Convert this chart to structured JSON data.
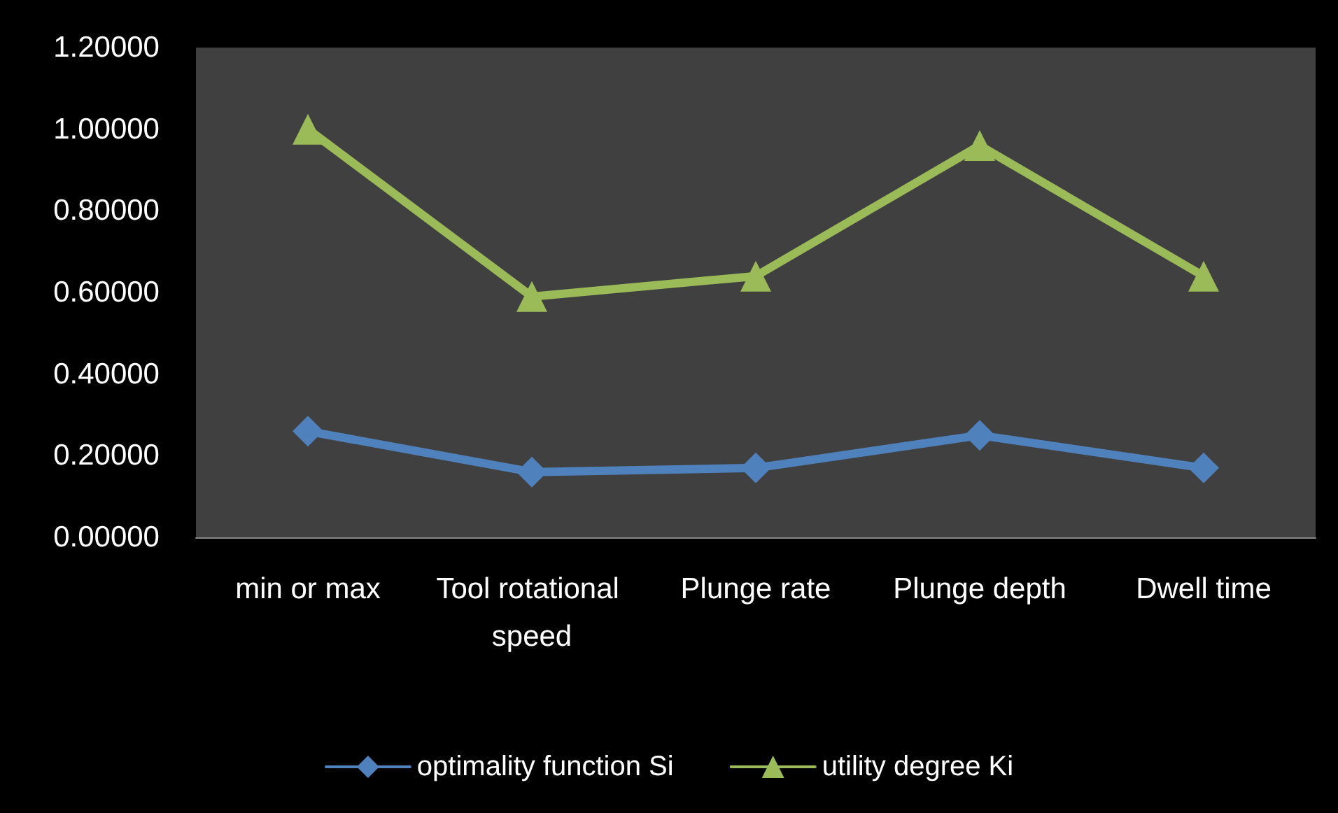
{
  "chart_data": {
    "type": "line",
    "categories": [
      "min or max",
      "Tool rotational speed",
      "Plunge rate",
      "Plunge depth",
      "Dwell time"
    ],
    "series": [
      {
        "name": "optimality function Si",
        "color": "#4f81bd",
        "marker": "diamond",
        "values": [
          0.26,
          0.16,
          0.17,
          0.25,
          0.17
        ]
      },
      {
        "name": "utility degree Ki",
        "color": "#9bbb59",
        "marker": "triangle",
        "values": [
          1.0,
          0.59,
          0.64,
          0.96,
          0.64
        ]
      }
    ],
    "ylim": [
      0,
      1.2
    ],
    "yticks": [
      {
        "value": 0,
        "label": "0.00000"
      },
      {
        "value": 0.2,
        "label": "0.20000"
      },
      {
        "value": 0.4,
        "label": "0.40000"
      },
      {
        "value": 0.6,
        "label": "0.60000"
      },
      {
        "value": 0.8,
        "label": "0.80000"
      },
      {
        "value": 1.0,
        "label": "1.00000"
      },
      {
        "value": 1.2,
        "label": "1.20000"
      }
    ],
    "grid": false,
    "legend": "bottom",
    "line_style": "solid"
  }
}
